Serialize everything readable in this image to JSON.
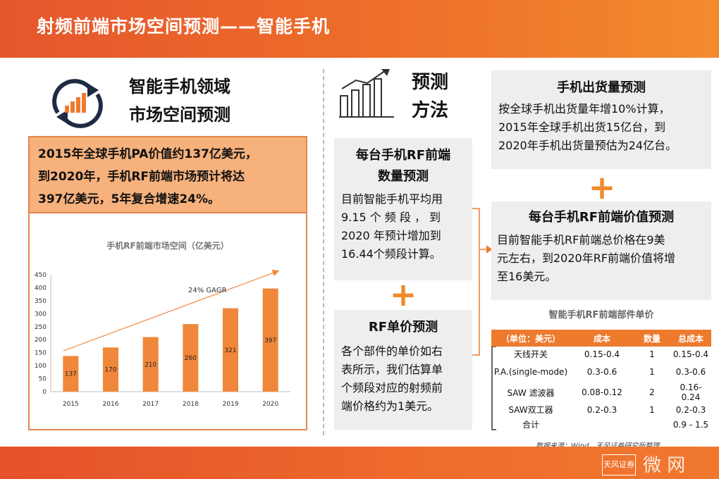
{
  "header": {
    "title": "射频前端市场空间预测——智能手机"
  },
  "left": {
    "title_line1": "智能手机领域",
    "title_line2": "市场空间预测",
    "summary_line1": "2015年全球手机PA价值约137亿美元，",
    "summary_line2": "到2020年，手机RF前端市场预计将达",
    "summary_line3": "397亿美元，5年复合增速24%。"
  },
  "middle": {
    "title_line1": "预测",
    "title_line2": "方法",
    "box1_title_line1": "每台手机RF前端",
    "box1_title_line2": "数量预测",
    "box1_line1": "目前智能手机平均用",
    "box1_line2": "9.15 个 频 段 ， 到",
    "box1_line3": "2020 年预计增加到",
    "box1_line4": "16.44个频段计算。",
    "box2_title": "RF单价预测",
    "box2_line1": "各个部件的单价如右",
    "box2_line2": "表所示，我们估算单",
    "box2_line3": "个频段对应的射频前",
    "box2_line4": "端价格约为1美元。"
  },
  "right": {
    "ship_title": "手机出货量预测",
    "ship_line1": "按全球手机出货量年增10%计算，",
    "ship_line2": "2015年全球手机出货15亿台，到",
    "ship_line3": "2020年手机出货量预估为24亿台。",
    "value_title": "每台手机RF前端价值预测",
    "value_line1": "目前智能手机RF前端总价格在9美",
    "value_line2": "元左右，到2020年RF前端价值将增",
    "value_line3": "至16美元。",
    "table_title": "智能手机RF前端部件单价",
    "table_headers": [
      "（单位：美元）",
      "成本",
      "数量",
      "总成本"
    ],
    "table_rows": [
      [
        "天线开关",
        "0.15-0.4",
        "1",
        "0.15-0.4"
      ],
      [
        "P.A.(single-mode)",
        "0.3-0.6",
        "1",
        "0.3-0.6"
      ],
      [
        "SAW 滤波器",
        "0.08-0.12",
        "2",
        "0.16-0.24"
      ],
      [
        "SAW双工器",
        "0.2-0.3",
        "1",
        "0.2-0.3"
      ],
      [
        "合计",
        "",
        "",
        "0.9 - 1.5"
      ]
    ]
  },
  "plus_sign": "+",
  "footer": {
    "source": "数据来源：Wind，天风证券研究所整理",
    "watermark_logo": "天风证券",
    "watermark_text": "微 网"
  },
  "colors": {
    "accent": "#ee7a2e",
    "bar": "#f0873a",
    "header": "#e8592c"
  },
  "icons": [
    "refresh-chart-icon",
    "bar-growth-icon"
  ],
  "chart_data": {
    "type": "bar",
    "title": "手机RF前端市场空间（亿美元）",
    "categories": [
      "2015",
      "2016",
      "2017",
      "2018",
      "2019",
      "2020"
    ],
    "values": [
      137,
      170,
      210,
      260,
      321,
      397
    ],
    "ylim": [
      0,
      450
    ],
    "yticks": [
      0,
      50,
      100,
      150,
      200,
      250,
      300,
      350,
      400,
      450
    ],
    "annotation": "24% GAGR",
    "xlabel": "",
    "ylabel": "",
    "grid": false,
    "legend": "none"
  }
}
